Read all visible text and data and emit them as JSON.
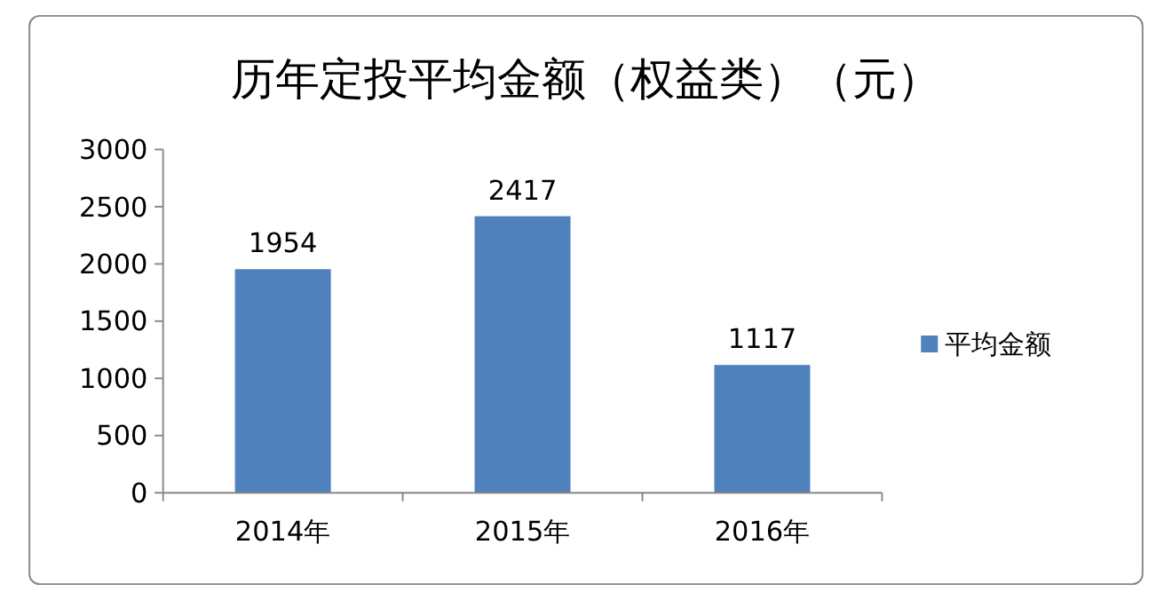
{
  "chart_data": {
    "type": "bar",
    "title": "历年定投平均金额（权益类）（元）",
    "categories": [
      "2014年",
      "2015年",
      "2016年"
    ],
    "series": [
      {
        "name": "平均金额",
        "color": "#4f81bd",
        "values": [
          1954,
          2417,
          1117
        ]
      }
    ],
    "ylim": [
      0,
      3000
    ],
    "yticks": [
      0,
      500,
      1000,
      1500,
      2000,
      2500,
      3000
    ],
    "data_labels": true,
    "grid": false,
    "legend": "right"
  }
}
